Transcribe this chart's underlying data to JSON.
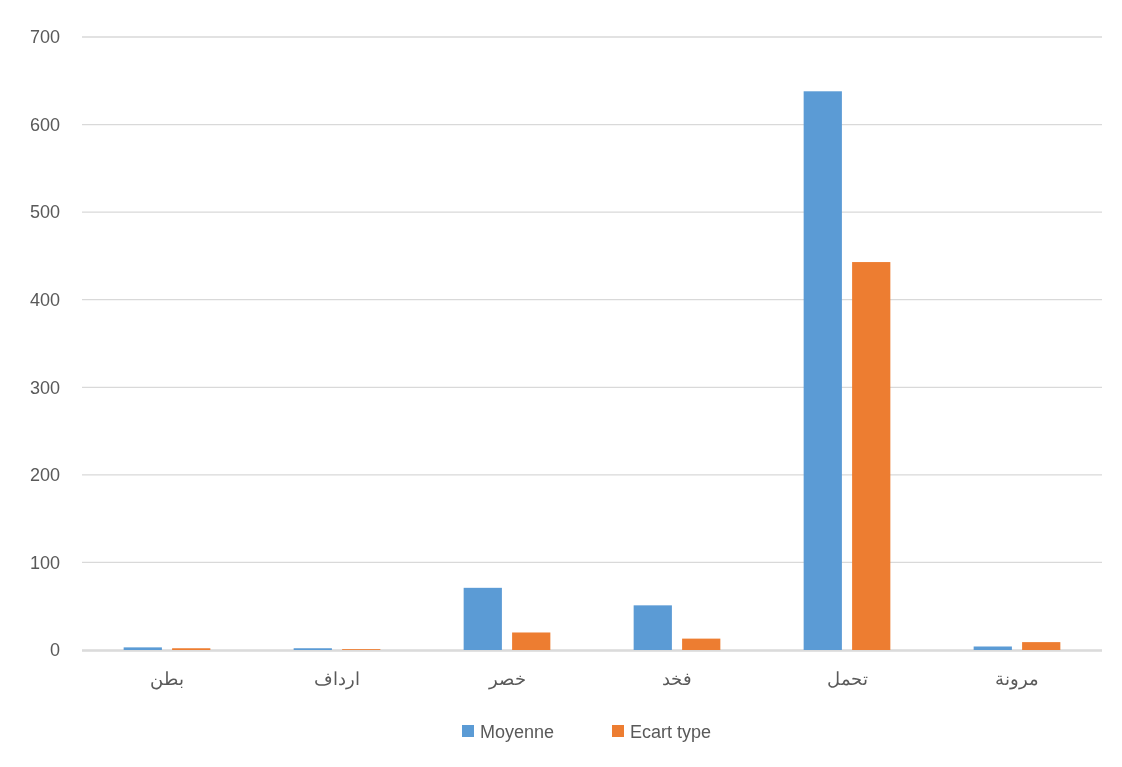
{
  "chart_data": {
    "type": "bar",
    "categories": [
      "بطن",
      "ارداف",
      "خصر",
      "فخد",
      "تحمل",
      "مرونة"
    ],
    "series": [
      {
        "name": "Moyenne",
        "color": "#5b9bd5",
        "values": [
          3,
          2,
          71,
          51,
          638,
          4
        ]
      },
      {
        "name": "Ecart type",
        "color": "#ed7d31",
        "values": [
          2,
          1,
          20,
          13,
          443,
          9
        ]
      }
    ],
    "ylim": [
      0,
      700
    ],
    "yticks": [
      0,
      100,
      200,
      300,
      400,
      500,
      600,
      700
    ],
    "grid": "y",
    "legend": "bottom"
  }
}
